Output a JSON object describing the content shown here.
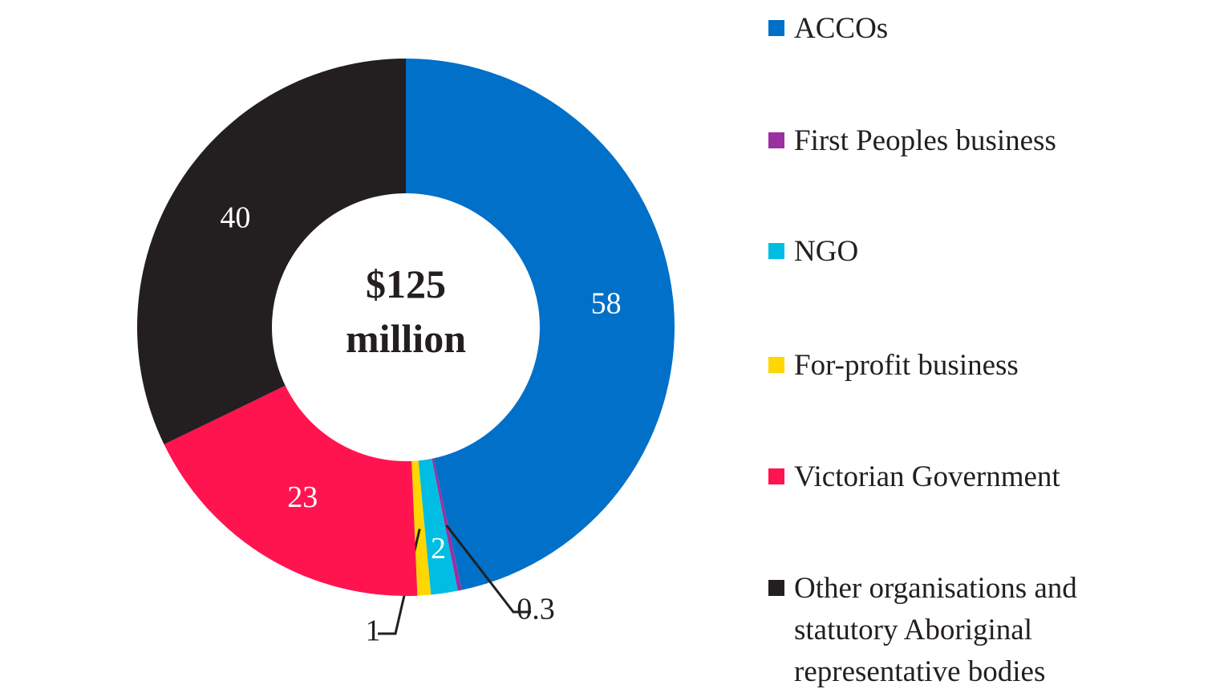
{
  "chart_data": {
    "type": "donut",
    "center_text": "$125 million",
    "categories": [
      "ACCOs",
      "First Peoples business",
      "NGO",
      "For-profit business",
      "Victorian Government",
      "Other organisations and statutory Aboriginal representative bodies"
    ],
    "values": [
      58,
      0.3,
      2,
      1,
      23,
      40
    ],
    "colors": [
      "#0070c9",
      "#9b30a0",
      "#00bde3",
      "#ffd700",
      "#ff1450",
      "#231f20"
    ],
    "legend": "right"
  }
}
